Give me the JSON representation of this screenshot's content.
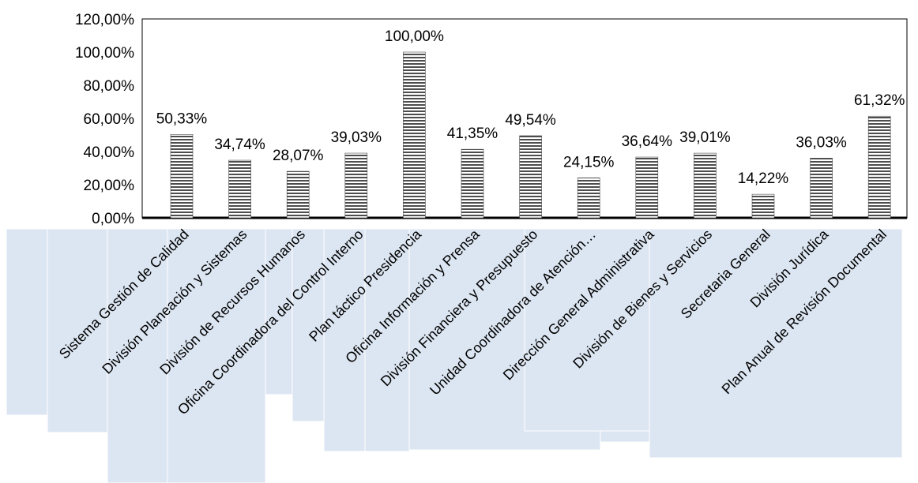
{
  "chart_data": {
    "type": "bar",
    "categories": [
      "Sistema Gestión de Calidad",
      "División Planeación y Sistemas",
      "División de Recursos Humanos",
      "Oficina Coordinadora del Control Interno",
      "Plan táctico Presidencia",
      "Oficina Información y Prensa",
      "División Financiera y Presupuesto",
      "Unidad Coordinadora de Atención…",
      "Dirección General Administrativa",
      "División de Bienes y Servicios",
      "Secretaria General",
      "División Jurídica",
      "Plan Anual de Revisión Documental"
    ],
    "values": [
      50.33,
      34.74,
      28.07,
      39.03,
      100.0,
      41.35,
      49.54,
      24.15,
      36.64,
      39.01,
      14.22,
      36.03,
      61.32
    ],
    "data_labels": [
      "50,33%",
      "34,74%",
      "28,07%",
      "39,03%",
      "100,00%",
      "41,35%",
      "49,54%",
      "24,15%",
      "36,64%",
      "39,01%",
      "14,22%",
      "36,03%",
      "61,32%"
    ],
    "ylim": [
      0,
      120
    ],
    "yticks": [
      0,
      20,
      40,
      60,
      80,
      100,
      120
    ],
    "ytick_labels": [
      "0,00%",
      "20,00%",
      "40,00%",
      "60,00%",
      "80,00%",
      "100,00%",
      "120,00%"
    ],
    "title": "",
    "xlabel": "",
    "ylabel": "",
    "legend": "none",
    "grid": false,
    "bar_pattern": "horizontal-stripes",
    "colors": {
      "bar_stripe_dark": "#4d4d4d",
      "bar_stripe_light": "#ffffff",
      "label_box": "#dce6f2",
      "axis": "#000000"
    }
  }
}
